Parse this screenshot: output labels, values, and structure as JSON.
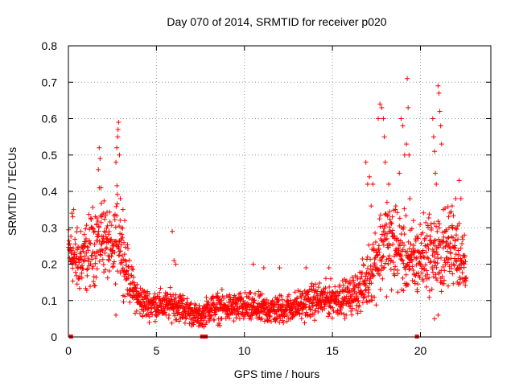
{
  "chart_data": {
    "type": "scatter",
    "title": "Day 070 of 2014, SRMTID for receiver p020",
    "xlabel": "GPS time / hours",
    "ylabel": "SRMTID / TECUs",
    "xlim": [
      0,
      24
    ],
    "ylim": [
      0,
      0.8
    ],
    "xticks": [
      0,
      5,
      10,
      15,
      20
    ],
    "xtick_labels": [
      "0",
      "5",
      "10",
      "15",
      "20"
    ],
    "yticks": [
      0,
      0.1,
      0.2,
      0.3,
      0.4,
      0.5,
      0.6,
      0.7,
      0.8
    ],
    "ytick_labels": [
      "0",
      "0.1",
      "0.2",
      "0.3",
      "0.4",
      "0.5",
      "0.6",
      "0.7",
      "0.8"
    ],
    "grid": true,
    "marker": "+",
    "color": "#ff0000",
    "envelope": {
      "x": [
        0,
        0.5,
        1,
        1.5,
        2,
        2.5,
        2.8,
        3.2,
        3.6,
        4,
        4.5,
        5,
        5.5,
        6,
        6.5,
        7,
        7.5,
        8,
        9,
        10,
        11,
        12,
        13,
        14,
        15,
        16,
        16.8,
        17.5,
        18,
        18.5,
        19,
        19.5,
        20,
        20.5,
        21,
        21.5,
        22,
        22.6
      ],
      "y": [
        0.24,
        0.2,
        0.22,
        0.26,
        0.28,
        0.22,
        0.3,
        0.2,
        0.14,
        0.1,
        0.09,
        0.09,
        0.085,
        0.09,
        0.08,
        0.065,
        0.055,
        0.08,
        0.08,
        0.08,
        0.075,
        0.075,
        0.085,
        0.1,
        0.105,
        0.11,
        0.14,
        0.22,
        0.26,
        0.25,
        0.23,
        0.2,
        0.22,
        0.24,
        0.22,
        0.24,
        0.26,
        0.17
      ],
      "spread": [
        0.05,
        0.06,
        0.07,
        0.08,
        0.08,
        0.06,
        0.09,
        0.06,
        0.04,
        0.035,
        0.03,
        0.03,
        0.03,
        0.03,
        0.03,
        0.025,
        0.02,
        0.03,
        0.03,
        0.03,
        0.03,
        0.03,
        0.03,
        0.035,
        0.035,
        0.035,
        0.05,
        0.08,
        0.09,
        0.09,
        0.08,
        0.07,
        0.08,
        0.08,
        0.08,
        0.08,
        0.08,
        0.06
      ]
    },
    "points": [
      [
        0.2,
        0.34
      ],
      [
        0.25,
        0.33
      ],
      [
        0.3,
        0.35
      ],
      [
        0.5,
        0.3
      ],
      [
        0.7,
        0.29
      ],
      [
        1.0,
        0.27
      ],
      [
        1.3,
        0.3
      ],
      [
        1.6,
        0.31
      ],
      [
        1.7,
        0.46
      ],
      [
        1.75,
        0.52
      ],
      [
        1.8,
        0.49
      ],
      [
        1.85,
        0.41
      ],
      [
        1.9,
        0.33
      ],
      [
        2.0,
        0.34
      ],
      [
        2.2,
        0.27
      ],
      [
        2.5,
        0.25
      ],
      [
        2.7,
        0.48
      ],
      [
        2.75,
        0.52
      ],
      [
        2.8,
        0.55
      ],
      [
        2.82,
        0.57
      ],
      [
        2.85,
        0.59
      ],
      [
        2.9,
        0.5
      ],
      [
        2.95,
        0.38
      ],
      [
        3.0,
        0.3
      ],
      [
        3.1,
        0.35
      ],
      [
        3.2,
        0.32
      ],
      [
        2.7,
        0.06
      ],
      [
        3.0,
        0.27
      ],
      [
        5.9,
        0.29
      ],
      [
        6.0,
        0.21
      ],
      [
        6.1,
        0.2
      ],
      [
        7.4,
        0.03
      ],
      [
        7.6,
        0.03
      ],
      [
        10.5,
        0.2
      ],
      [
        11.1,
        0.19
      ],
      [
        12.0,
        0.19
      ],
      [
        13.5,
        0.19
      ],
      [
        14.8,
        0.19
      ],
      [
        16.9,
        0.48
      ],
      [
        17.0,
        0.42
      ],
      [
        17.1,
        0.44
      ],
      [
        17.2,
        0.36
      ],
      [
        17.3,
        0.42
      ],
      [
        17.6,
        0.6
      ],
      [
        17.7,
        0.64
      ],
      [
        17.8,
        0.63
      ],
      [
        17.9,
        0.6
      ],
      [
        17.95,
        0.55
      ],
      [
        18.0,
        0.48
      ],
      [
        18.1,
        0.37
      ],
      [
        18.2,
        0.42
      ],
      [
        18.4,
        0.33
      ],
      [
        18.6,
        0.36
      ],
      [
        18.8,
        0.45
      ],
      [
        18.9,
        0.6
      ],
      [
        19.0,
        0.58
      ],
      [
        19.1,
        0.5
      ],
      [
        19.2,
        0.53
      ],
      [
        19.25,
        0.71
      ],
      [
        19.3,
        0.63
      ],
      [
        19.35,
        0.5
      ],
      [
        19.4,
        0.38
      ],
      [
        19.6,
        0.32
      ],
      [
        20.7,
        0.6
      ],
      [
        20.75,
        0.55
      ],
      [
        20.8,
        0.51
      ],
      [
        20.85,
        0.45
      ],
      [
        20.9,
        0.42
      ],
      [
        21.0,
        0.69
      ],
      [
        21.05,
        0.67
      ],
      [
        21.1,
        0.62
      ],
      [
        21.15,
        0.58
      ],
      [
        21.2,
        0.53
      ],
      [
        21.3,
        0.35
      ],
      [
        21.0,
        0.06
      ],
      [
        20.8,
        0.05
      ],
      [
        21.6,
        0.33
      ],
      [
        21.8,
        0.36
      ],
      [
        22.0,
        0.38
      ],
      [
        22.2,
        0.43
      ],
      [
        22.3,
        0.38
      ],
      [
        22.5,
        0.28
      ]
    ],
    "zero_markers": [
      0.15,
      7.6,
      7.8,
      19.8
    ]
  }
}
